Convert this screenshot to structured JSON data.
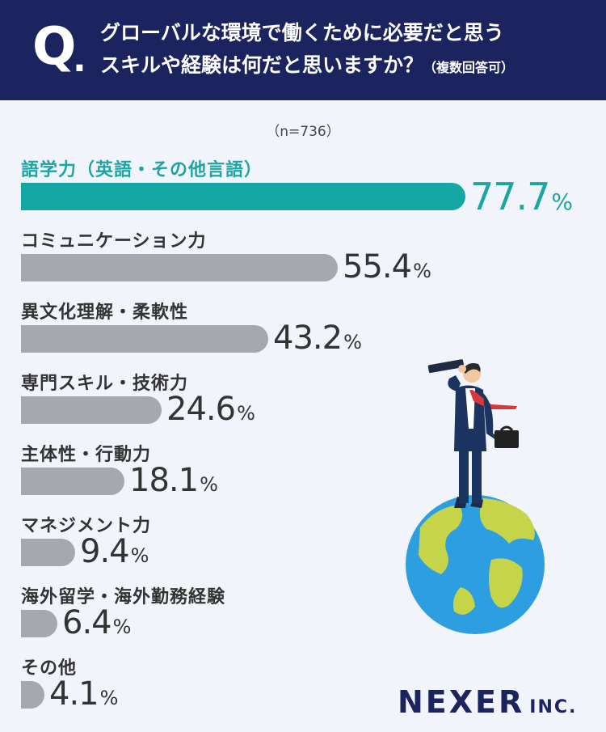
{
  "header": {
    "q_mark": "Q",
    "q_dot": ".",
    "line1": "グローバルな環境で働くために必要だと思う",
    "line2": "スキルや経験は何だと思いますか？",
    "note": "（複数回答可）"
  },
  "sample_size": "（n=736）",
  "percent_sign": "%",
  "logo": {
    "name": "NEXER",
    "suffix": "INC."
  },
  "colors": {
    "header": "#1c2460",
    "highlight": "#15a7a4",
    "bar": "#a7a8ad",
    "background": "#f2f4fb"
  },
  "chart_data": {
    "type": "bar",
    "orientation": "horizontal",
    "categories": [
      "語学力（英語・その他言語）",
      "コミュニケーション力",
      "異文化理解・柔軟性",
      "専門スキル・技術力",
      "主体性・行動力",
      "マネジメント力",
      "海外留学・海外勤務経験",
      "その他"
    ],
    "values": [
      77.7,
      55.4,
      43.2,
      24.6,
      18.1,
      9.4,
      6.4,
      4.1
    ],
    "value_labels": [
      "77.7",
      "55.4",
      "43.2",
      "24.6",
      "18.1",
      "9.4",
      "6.4",
      "4.1"
    ],
    "unit": "%",
    "highlight_index": 0
  }
}
